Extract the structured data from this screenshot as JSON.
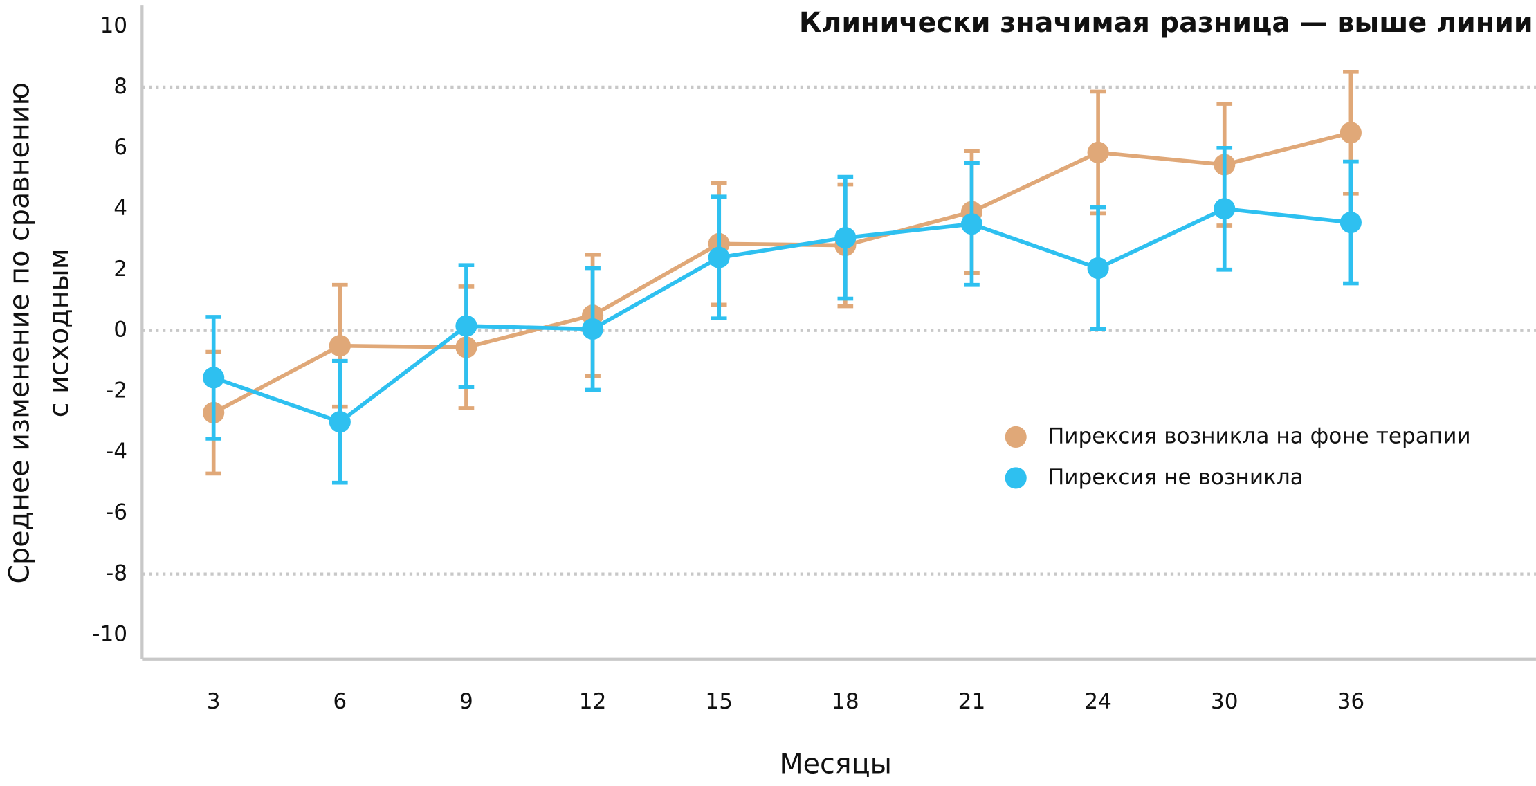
{
  "chart_data": {
    "type": "line",
    "title": "Клинически значимая разница — выше линии",
    "xlabel": "Месяцы",
    "ylabel": [
      "Среднее изменение по сравнению",
      "с исходным"
    ],
    "categories": [
      "3",
      "6",
      "9",
      "12",
      "15",
      "18",
      "21",
      "24",
      "30",
      "36"
    ],
    "series": [
      {
        "name": "Пирексия возникла на фоне терапии",
        "color": "#e0a878",
        "values": [
          -2.7,
          -0.5,
          -0.55,
          0.5,
          2.85,
          2.8,
          3.9,
          5.85,
          5.45,
          6.5
        ],
        "errors": [
          2,
          2,
          2,
          2,
          2,
          2,
          2,
          2,
          2,
          2
        ]
      },
      {
        "name": "Пирексия не возникла",
        "color": "#2ec0f0",
        "values": [
          -1.55,
          -3.0,
          0.15,
          0.05,
          2.4,
          3.05,
          3.5,
          2.05,
          4.0,
          3.55
        ],
        "errors": [
          2,
          2,
          2,
          2,
          2,
          2,
          2,
          2,
          2,
          2
        ]
      }
    ],
    "ylim": [
      -10.8,
      10.7
    ],
    "yticks": [
      10,
      8,
      6,
      4,
      2,
      0,
      -2,
      -4,
      -6,
      -8,
      -10
    ],
    "hlines": [
      8,
      0,
      -8
    ],
    "legend": "right"
  }
}
